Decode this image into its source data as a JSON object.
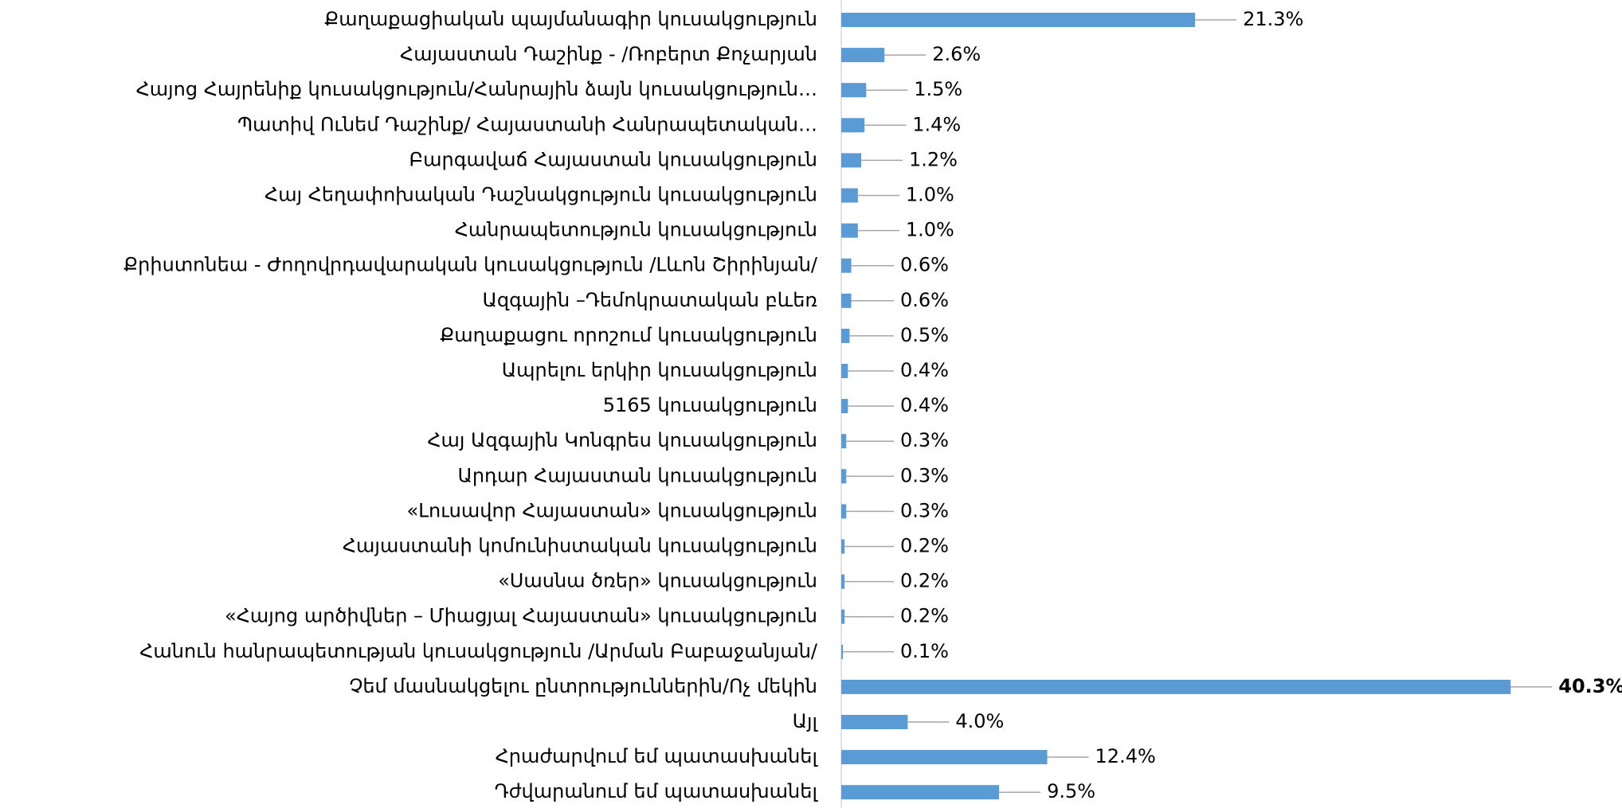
{
  "chart_data": {
    "type": "bar",
    "orientation": "horizontal",
    "categories": [
      "Քաղաքացիական պայմանագիր կուսակցություն",
      "Հայաստան Դաշինք - /Ռոբերտ Քոչարյան",
      "Հայոց Հայրենիք կուսակցություն/Հանրային ձայն կուսակցություն…",
      "Պատիվ Ունեմ Դաշինք/ Հայաստանի Հանրապետական…",
      "Բարգավաճ Հայաստան կուսակցություն",
      "Հայ Հեղափոխական Դաշնակցություն կուսակցություն",
      "Հանրապետություն  կուսակցություն",
      "Քրիստոնեա - Ժողովրդավարական կուսակցություն /Լևոն Շիրինյան/",
      "Ազգային –Դեմոկրատական բևեռ",
      "Քաղաքացու որոշում  կուսակցություն",
      "Ապրելու երկիր կուսակցություն",
      "5165 կուսակցություն",
      "Հայ Ազգային Կոնգրես կուսակցություն",
      "Արդար Հայաստան կուսակցություն",
      "«Լուսավոր Հայաստան» կուսակցություն",
      "Հայաստանի կոմունիստական կուսակցություն",
      "«Սասնա ծռեր»  կուսակցություն",
      "«Հայոց արծիվներ – Միացյալ Հայաստան» կուսակցություն",
      "Հանուն հանրապետության կուսակցություն /Արման Բաբաջանյան/",
      "Չեմ մասնակցելու ընտրություններին/Ոչ մեկին",
      "Այլ",
      "Հրաժարվում եմ պատասխանել",
      "Դժվարանում եմ պատասխանել"
    ],
    "values": [
      21.3,
      2.6,
      1.5,
      1.4,
      1.2,
      1.0,
      1.0,
      0.6,
      0.6,
      0.5,
      0.4,
      0.4,
      0.3,
      0.3,
      0.3,
      0.2,
      0.2,
      0.2,
      0.1,
      40.3,
      4.0,
      12.4,
      9.5
    ],
    "value_labels": [
      "21.3%",
      "2.6%",
      "1.5%",
      "1.4%",
      "1.2%",
      "1.0%",
      "1.0%",
      "0.6%",
      "0.6%",
      "0.5%",
      "0.4%",
      "0.4%",
      "0.3%",
      "0.3%",
      "0.3%",
      "0.2%",
      "0.2%",
      "0.2%",
      "0.1%",
      "40.3%",
      "4.0%",
      "12.4%",
      "9.5%"
    ],
    "value_label_colors": [
      "#000000",
      "#000000",
      "#000000",
      "#000000",
      "#000000",
      "#000000",
      "#000000",
      "#000000",
      "#000000",
      "#000000",
      "#000000",
      "#000000",
      "#000000",
      "#000000",
      "#000000",
      "#000000",
      "#000000",
      "#000000",
      "#000000",
      "#ff0000",
      "#000000",
      "#000000",
      "#000000"
    ],
    "color": "#5b9bd5"
  }
}
